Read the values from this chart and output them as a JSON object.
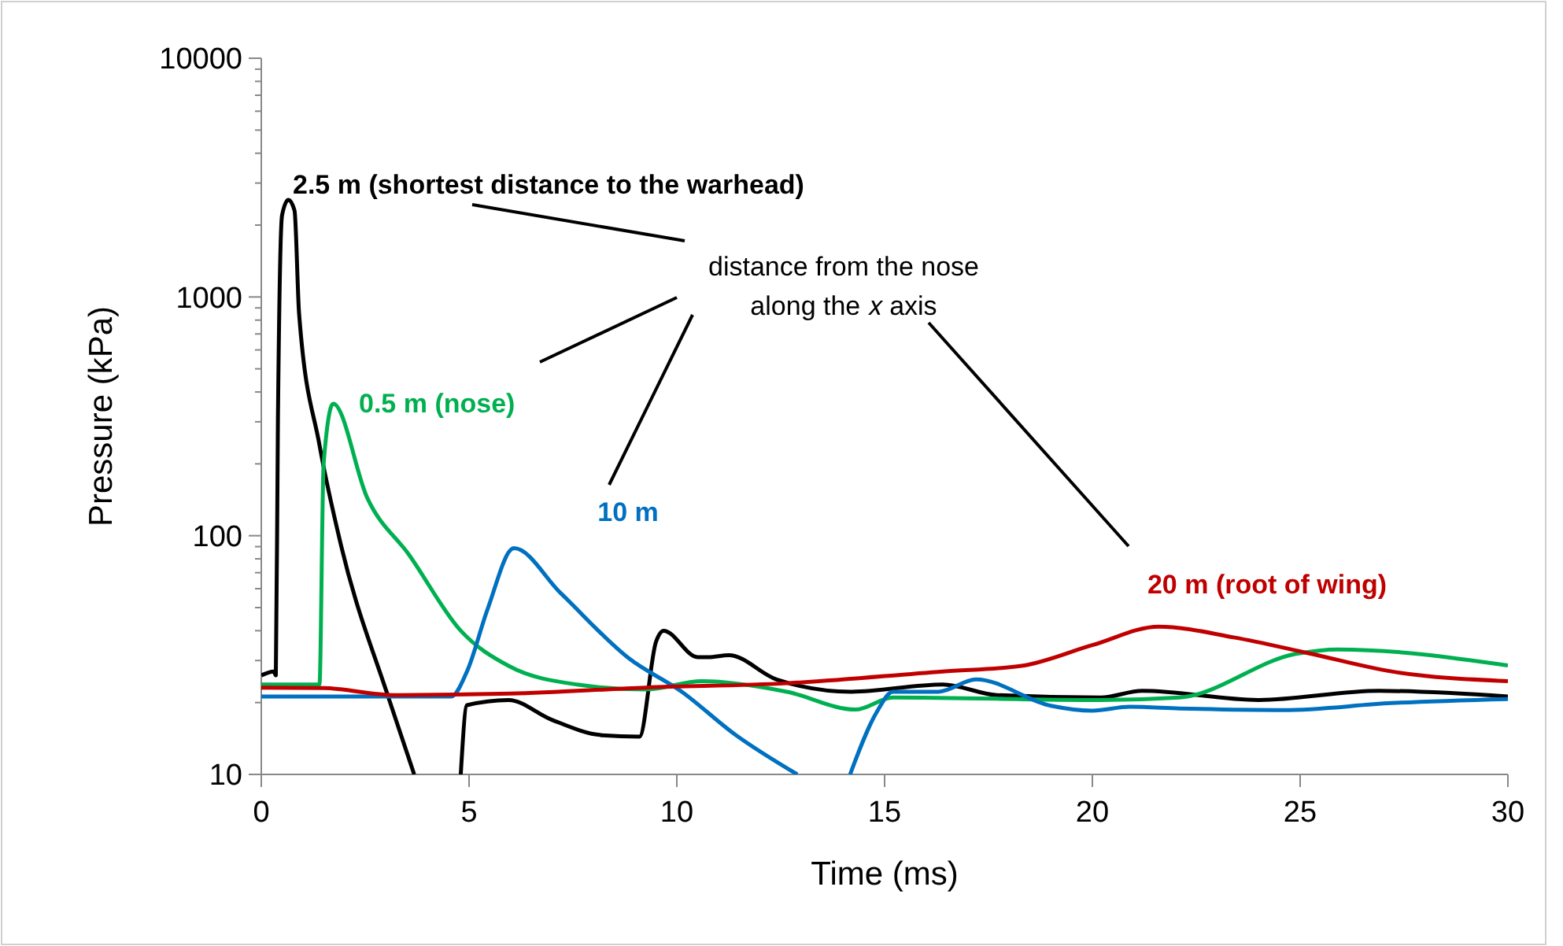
{
  "chart_data": {
    "type": "line",
    "xlabel": "Time (ms)",
    "ylabel": "Pressure (kPa)",
    "log": "y",
    "xlim": [
      0,
      30
    ],
    "xticks": [
      0,
      5,
      10,
      15,
      20,
      25,
      30
    ],
    "ylim": [
      10,
      10000
    ],
    "yticks": [
      10,
      100,
      1000,
      10000
    ],
    "grid": false,
    "marker": "none",
    "line_style": "solid",
    "annotations": [
      "distance from the nose along the 𝑥 axis"
    ],
    "series": [
      {
        "name": "2.5 m (shortest distance to the warhead)",
        "color": "#000000",
        "x": [
          0,
          0.3,
          0.35,
          0.4,
          0.5,
          0.65,
          0.8,
          0.91,
          1.4,
          1.92,
          3.06,
          3.68,
          4.3,
          4.8,
          4.95,
          5.95,
          6.97,
          8.2,
          9.1,
          9.5,
          9.68,
          10.5,
          10.76,
          11.25,
          12.4,
          14.2,
          16.4,
          17.7,
          20.2,
          21.2,
          24,
          26.9,
          30
        ],
        "values": [
          26,
          27,
          26,
          300,
          2200,
          2550,
          2300,
          850,
          240,
          91,
          21,
          10,
          null,
          10,
          19.5,
          20.5,
          17,
          14.6,
          14.4,
          36,
          40,
          31,
          31,
          31.6,
          25,
          22.2,
          23.8,
          21.5,
          21,
          22.4,
          20.5,
          22.4,
          21.2
        ]
      },
      {
        "name": "0.5 m (nose)",
        "color": "#00b050",
        "x": [
          0,
          1.4,
          1.5,
          1.73,
          2.55,
          3.56,
          4.8,
          5.95,
          7.6,
          9.25,
          10.6,
          12.65,
          14.3,
          15.2,
          20.2,
          22.1,
          24.9,
          25.9,
          30
        ],
        "values": [
          23.8,
          23.8,
          200,
          357,
          144,
          83,
          40,
          28.5,
          23.8,
          22.7,
          24.6,
          22.2,
          18.7,
          21,
          20.5,
          21,
          32,
          33.4,
          28.6
        ]
      },
      {
        "name": "10 m",
        "color": "#0070c0",
        "x": [
          0,
          4.57,
          4.95,
          5.45,
          6.08,
          7.2,
          8.86,
          10.12,
          11.4,
          12.9,
          13.5,
          14.17,
          14.8,
          15.2,
          16.3,
          17.2,
          19,
          20,
          20.9,
          22.1,
          24.6,
          27.2,
          30
        ],
        "values": [
          21.2,
          21.2,
          27,
          49.5,
          88.6,
          57.6,
          30.5,
          22.2,
          14.7,
          10,
          null,
          10,
          18.1,
          22.2,
          22.2,
          25,
          19.4,
          18.5,
          19.2,
          18.9,
          18.6,
          19.9,
          20.7
        ]
      },
      {
        "name": "20 m (root of wing)",
        "color": "#c00000",
        "x": [
          0,
          1.5,
          3.2,
          6,
          9.25,
          12.65,
          16.4,
          18.3,
          20,
          21.6,
          23.4,
          25.2,
          27.2,
          30
        ],
        "values": [
          23.1,
          23,
          21.5,
          21.8,
          23.1,
          24.1,
          27,
          28.5,
          34.8,
          41.6,
          37.5,
          32.2,
          27,
          24.6
        ]
      }
    ]
  }
}
